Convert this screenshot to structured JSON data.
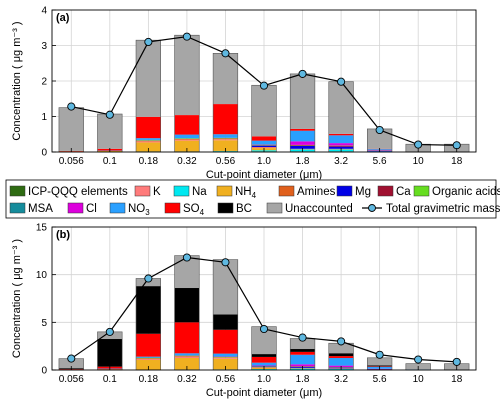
{
  "colors": {
    "icp_qqq": "#2e6b12",
    "k": "#ff7b7b",
    "na": "#00e8f0",
    "nh4": "#f0b020",
    "amines": "#e0601c",
    "mg": "#0000e6",
    "ca": "#a01030",
    "organic_acids": "#66dd20",
    "msa": "#158c9c",
    "cl": "#dd00dd",
    "no3": "#2aa0ff",
    "so4": "#ff0000",
    "bc": "#000000",
    "unaccounted": "#a6a6a6",
    "total_line": "#000000",
    "total_marker": "#5fb8e0"
  },
  "legend": {
    "row1": [
      {
        "key": "icp_qqq",
        "label": "ICP-QQQ elements"
      },
      {
        "key": "k",
        "label": "K"
      },
      {
        "key": "na",
        "label": "Na"
      },
      {
        "key": "nh4",
        "label": "NH",
        "sub": "4"
      },
      {
        "key": "amines",
        "label": "Amines"
      },
      {
        "key": "mg",
        "label": "Mg"
      },
      {
        "key": "ca",
        "label": "Ca"
      },
      {
        "key": "organic_acids",
        "label": "Organic acids"
      }
    ],
    "row2": [
      {
        "key": "msa",
        "label": "MSA"
      },
      {
        "key": "cl",
        "label": "Cl"
      },
      {
        "key": "no3",
        "label": "NO",
        "sub": "3"
      },
      {
        "key": "so4",
        "label": "SO",
        "sub": "4"
      },
      {
        "key": "bc",
        "label": "BC"
      },
      {
        "key": "unaccounted",
        "label": "Unaccounted"
      },
      {
        "key": "total_line",
        "label": "Total  gravimetric mass",
        "line": true
      }
    ]
  },
  "chart_data": [
    {
      "panel": "(a)",
      "type": "bar",
      "stacked": true,
      "xlabel": "Cut-point diameter (μm)",
      "ylabel": "Concentration ( μg m⁻³ )",
      "ylim": [
        0,
        4
      ],
      "yticks": [
        0,
        1,
        2,
        3,
        4
      ],
      "grid": true,
      "categories": [
        "0.056",
        "0.1",
        "0.18",
        "0.32",
        "0.56",
        "1.0",
        "1.8",
        "3.2",
        "5.6",
        "10",
        "18"
      ],
      "series": [
        {
          "key": "icp_qqq",
          "values": [
            0.01,
            0.01,
            0.02,
            0.02,
            0.02,
            0.02,
            0.02,
            0.02,
            0.01,
            0.01,
            0.01
          ]
        },
        {
          "key": "na",
          "values": [
            0,
            0,
            0,
            0,
            0.01,
            0.03,
            0.05,
            0.05,
            0.01,
            0,
            0
          ]
        },
        {
          "key": "nh4",
          "values": [
            0.01,
            0.02,
            0.25,
            0.3,
            0.3,
            0.06,
            0.01,
            0.01,
            0,
            0,
            0
          ]
        },
        {
          "key": "k",
          "values": [
            0,
            0,
            0.03,
            0.03,
            0.03,
            0.02,
            0.01,
            0.01,
            0,
            0,
            0
          ]
        },
        {
          "key": "amines",
          "values": [
            0,
            0,
            0.02,
            0.02,
            0.02,
            0.01,
            0,
            0,
            0,
            0,
            0
          ]
        },
        {
          "key": "mg",
          "values": [
            0,
            0,
            0,
            0,
            0,
            0.04,
            0.08,
            0.06,
            0.01,
            0,
            0
          ]
        },
        {
          "key": "ca",
          "values": [
            0,
            0,
            0,
            0,
            0,
            0.01,
            0.02,
            0.02,
            0.01,
            0,
            0
          ]
        },
        {
          "key": "organic_acids",
          "values": [
            0,
            0,
            0.01,
            0.01,
            0.01,
            0.01,
            0.01,
            0.01,
            0,
            0,
            0
          ]
        },
        {
          "key": "msa",
          "values": [
            0,
            0,
            0.01,
            0.01,
            0.01,
            0.01,
            0,
            0,
            0,
            0,
            0
          ]
        },
        {
          "key": "cl",
          "values": [
            0,
            0,
            0,
            0,
            0,
            0.01,
            0.1,
            0.07,
            0.01,
            0,
            0
          ]
        },
        {
          "key": "no3",
          "values": [
            0,
            0.01,
            0.05,
            0.1,
            0.1,
            0.1,
            0.3,
            0.22,
            0.03,
            0,
            0
          ]
        },
        {
          "key": "so4",
          "values": [
            0.01,
            0.05,
            0.6,
            0.55,
            0.85,
            0.12,
            0.05,
            0.04,
            0.01,
            0,
            0
          ]
        },
        {
          "key": "bc",
          "values": [
            0,
            0,
            0,
            0,
            0,
            0,
            0,
            0,
            0,
            0,
            0
          ]
        },
        {
          "key": "unaccounted",
          "values": [
            1.22,
            0.98,
            2.16,
            2.25,
            1.43,
            1.44,
            1.55,
            1.47,
            0.56,
            0.21,
            0.21
          ]
        }
      ],
      "total_gravimetric_mass": [
        1.28,
        1.05,
        3.1,
        3.25,
        2.78,
        1.87,
        2.2,
        1.98,
        0.62,
        0.21,
        0.19
      ]
    },
    {
      "panel": "(b)",
      "type": "bar",
      "stacked": true,
      "xlabel": "Cut-point diameter (μm)",
      "ylabel": "Concentration ( μg m⁻³ )",
      "ylim": [
        0,
        15
      ],
      "yticks": [
        0,
        5,
        10,
        15
      ],
      "grid": true,
      "categories": [
        "0.056",
        "0.1",
        "0.18",
        "0.32",
        "0.56",
        "1.0",
        "1.8",
        "3.2",
        "5.6",
        "10",
        "18"
      ],
      "series": [
        {
          "key": "icp_qqq",
          "values": [
            0.02,
            0.02,
            0.05,
            0.05,
            0.05,
            0.05,
            0.05,
            0.04,
            0.03,
            0.01,
            0.01
          ]
        },
        {
          "key": "na",
          "values": [
            0,
            0,
            0,
            0.01,
            0.02,
            0.05,
            0.1,
            0.08,
            0.03,
            0.01,
            0
          ]
        },
        {
          "key": "nh4",
          "values": [
            0.02,
            0.05,
            1.0,
            1.2,
            1.1,
            0.15,
            0.05,
            0.04,
            0,
            0,
            0
          ]
        },
        {
          "key": "k",
          "values": [
            0,
            0.02,
            0.1,
            0.12,
            0.1,
            0.03,
            0.02,
            0.01,
            0,
            0,
            0
          ]
        },
        {
          "key": "amines",
          "values": [
            0,
            0.01,
            0.08,
            0.08,
            0.06,
            0.02,
            0.01,
            0,
            0,
            0,
            0
          ]
        },
        {
          "key": "mg",
          "values": [
            0,
            0,
            0,
            0,
            0,
            0.05,
            0.1,
            0.08,
            0.02,
            0,
            0
          ]
        },
        {
          "key": "ca",
          "values": [
            0,
            0,
            0,
            0,
            0,
            0.03,
            0.05,
            0.04,
            0.02,
            0,
            0
          ]
        },
        {
          "key": "organic_acids",
          "values": [
            0,
            0,
            0.05,
            0.05,
            0.05,
            0.03,
            0.02,
            0.02,
            0,
            0,
            0
          ]
        },
        {
          "key": "msa",
          "values": [
            0,
            0,
            0.02,
            0.02,
            0.02,
            0.01,
            0,
            0,
            0,
            0,
            0
          ]
        },
        {
          "key": "cl",
          "values": [
            0,
            0,
            0,
            0.02,
            0.02,
            0.05,
            0.2,
            0.15,
            0.03,
            0,
            0
          ]
        },
        {
          "key": "no3",
          "values": [
            0,
            0.05,
            0.1,
            0.2,
            0.3,
            0.3,
            1.0,
            0.8,
            0.2,
            0.05,
            0
          ]
        },
        {
          "key": "so4",
          "values": [
            0.05,
            0.2,
            2.4,
            3.25,
            2.5,
            0.6,
            0.3,
            0.2,
            0.05,
            0,
            0
          ]
        },
        {
          "key": "bc",
          "values": [
            0.1,
            2.9,
            5.0,
            3.6,
            1.6,
            0.3,
            0.3,
            0.3,
            0.1,
            0,
            0
          ]
        },
        {
          "key": "unaccounted",
          "values": [
            1.0,
            0.75,
            0.8,
            3.4,
            5.76,
            2.88,
            1.1,
            1.05,
            0.8,
            0.6,
            0.65
          ]
        }
      ],
      "total_gravimetric_mass": [
        1.2,
        4.0,
        9.6,
        11.8,
        11.3,
        4.3,
        3.4,
        3.0,
        1.6,
        1.1,
        0.85
      ]
    }
  ]
}
